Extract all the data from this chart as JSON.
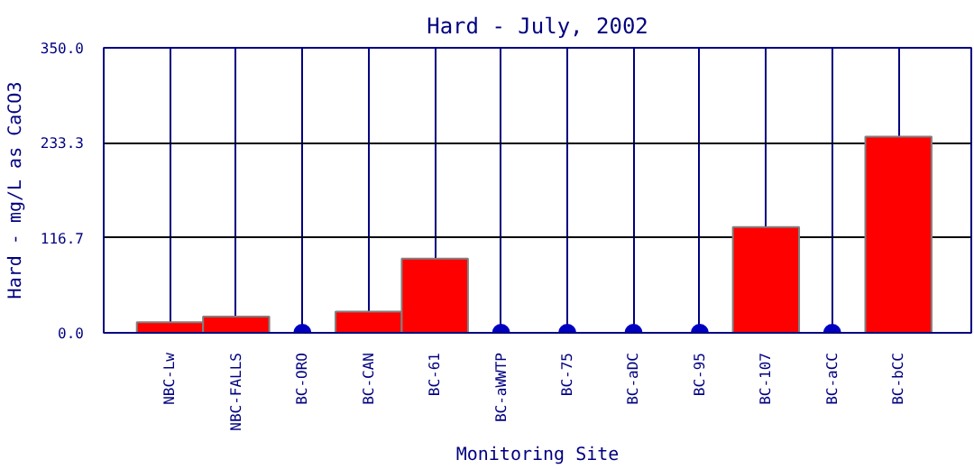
{
  "chart_data": {
    "type": "bar",
    "title": "Hard - July, 2002",
    "xlabel": "Monitoring Site",
    "ylabel": "Hard - mg/L as CaCO3",
    "categories": [
      "NBC-Lw",
      "NBC-FALLS",
      "BC-ORO",
      "BC-CAN",
      "BC-61",
      "BC-aWWTP",
      "BC-75",
      "BC-aDC",
      "BC-95",
      "BC-107",
      "BC-aCC",
      "BC-bCC"
    ],
    "series": [
      {
        "color": "#ff0000",
        "values": [
          13,
          20,
          null,
          26,
          91,
          null,
          null,
          null,
          null,
          130,
          null,
          241
        ]
      },
      {
        "type": "scatter",
        "color": "#0000c0",
        "marker": "circle",
        "x": [
          "BC-ORO",
          "BC-aWWTP",
          "BC-75",
          "BC-aDC",
          "BC-95",
          "BC-aCC"
        ],
        "values": [
          0,
          0,
          0,
          0,
          0,
          0
        ]
      }
    ],
    "ylim": [
      0,
      350
    ],
    "yticks": [
      {
        "value": 0,
        "label": "0.0"
      },
      {
        "value": 116.7,
        "label": "116.7"
      },
      {
        "value": 233.3,
        "label": "233.3"
      },
      {
        "value": 350,
        "label": "350.0"
      }
    ],
    "grid": true
  }
}
